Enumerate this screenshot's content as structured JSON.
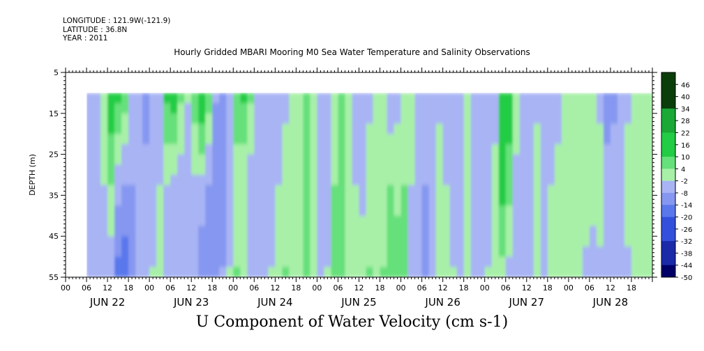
{
  "header": {
    "longitude": "LONGITUDE : 121.9W(-121.9)",
    "latitude": "LATITUDE : 36.8N",
    "year": "YEAR : 2011"
  },
  "chart_data": {
    "type": "heatmap",
    "title": "Hourly Gridded MBARI Mooring M0 Sea Water Temperature and Salinity Observations",
    "variable_title": "U Component of Water Velocity (cm s-1)",
    "ylabel": "DEPTH (m)",
    "ylim": [
      5,
      55
    ],
    "y_inverted": true,
    "y_ticks": [
      5,
      15,
      25,
      35,
      45,
      55
    ],
    "data_depth_range": [
      10,
      55
    ],
    "x_hour_ticks": [
      "00",
      "06",
      "12",
      "18",
      "00",
      "06",
      "12",
      "18",
      "00",
      "06",
      "12",
      "18",
      "00",
      "06",
      "12",
      "18",
      "00",
      "06",
      "12",
      "18",
      "00",
      "06",
      "12",
      "18",
      "00",
      "06",
      "12",
      "18"
    ],
    "x_day_labels": [
      "JUN 22",
      "JUN 23",
      "JUN 24",
      "JUN 25",
      "JUN 26",
      "JUN 27",
      "JUN 28"
    ],
    "time_range_hours": [
      0,
      168
    ],
    "data_time_range_hours": [
      6,
      168
    ],
    "colorbar": {
      "ticks": [
        "46",
        "40",
        "34",
        "28",
        "22",
        "16",
        "10",
        "4",
        "-2",
        "-8",
        "-14",
        "-20",
        "-26",
        "-32",
        "-38",
        "-44",
        "-50"
      ],
      "range": [
        -50,
        52
      ],
      "colors": {
        "high": "#0b3d0b",
        "positive": "#22cc44",
        "weak_positive": "#a8f0a8",
        "weak_negative": "#a8b4f4",
        "negative": "#5a78ec",
        "low": "#000066"
      }
    },
    "columns": [
      {
        "t": 6,
        "sfc": -5,
        "mid": -6,
        "deep": -8
      },
      {
        "t": 8,
        "sfc": -3,
        "mid": -5,
        "deep": -6
      },
      {
        "t": 10,
        "sfc": 2,
        "mid": -2,
        "deep": -4
      },
      {
        "t": 12,
        "sfc": 14,
        "mid": 4,
        "deep": -6
      },
      {
        "t": 14,
        "sfc": 12,
        "mid": -6,
        "deep": -16
      },
      {
        "t": 16,
        "sfc": 6,
        "mid": -8,
        "deep": -18
      },
      {
        "t": 18,
        "sfc": -4,
        "mid": -8,
        "deep": -12
      },
      {
        "t": 20,
        "sfc": -8,
        "mid": -8,
        "deep": -8
      },
      {
        "t": 22,
        "sfc": -10,
        "mid": -6,
        "deep": -4
      },
      {
        "t": 24,
        "sfc": -8,
        "mid": -4,
        "deep": -2
      },
      {
        "t": 26,
        "sfc": -4,
        "mid": -2,
        "deep": 2
      },
      {
        "t": 28,
        "sfc": 10,
        "mid": -2,
        "deep": -4
      },
      {
        "t": 30,
        "sfc": 14,
        "mid": -4,
        "deep": -6
      },
      {
        "t": 32,
        "sfc": 4,
        "mid": -6,
        "deep": -8
      },
      {
        "t": 34,
        "sfc": -2,
        "mid": -6,
        "deep": -6
      },
      {
        "t": 36,
        "sfc": 8,
        "mid": -4,
        "deep": -8
      },
      {
        "t": 38,
        "sfc": 16,
        "mid": -4,
        "deep": -12
      },
      {
        "t": 40,
        "sfc": 6,
        "mid": -8,
        "deep": -14
      },
      {
        "t": 42,
        "sfc": -8,
        "mid": -12,
        "deep": -14
      },
      {
        "t": 44,
        "sfc": -12,
        "mid": -10,
        "deep": -8
      },
      {
        "t": 46,
        "sfc": -6,
        "mid": -4,
        "deep": -2
      },
      {
        "t": 48,
        "sfc": 6,
        "mid": 2,
        "deep": 4
      },
      {
        "t": 50,
        "sfc": 10,
        "mid": -2,
        "deep": -2
      },
      {
        "t": 52,
        "sfc": 4,
        "mid": -6,
        "deep": -6
      },
      {
        "t": 54,
        "sfc": -4,
        "mid": -8,
        "deep": -8
      },
      {
        "t": 56,
        "sfc": -6,
        "mid": -6,
        "deep": -6
      },
      {
        "t": 58,
        "sfc": -8,
        "mid": -4,
        "deep": -2
      },
      {
        "t": 60,
        "sfc": -6,
        "mid": -2,
        "deep": 2
      },
      {
        "t": 62,
        "sfc": -4,
        "mid": 2,
        "deep": 4
      },
      {
        "t": 64,
        "sfc": -2,
        "mid": 2,
        "deep": 2
      },
      {
        "t": 66,
        "sfc": 2,
        "mid": 4,
        "deep": 2
      },
      {
        "t": 68,
        "sfc": 6,
        "mid": 6,
        "deep": 4
      },
      {
        "t": 70,
        "sfc": 2,
        "mid": 2,
        "deep": -2
      },
      {
        "t": 72,
        "sfc": -4,
        "mid": -2,
        "deep": -4
      },
      {
        "t": 74,
        "sfc": -6,
        "mid": -4,
        "deep": -2
      },
      {
        "t": 76,
        "sfc": -2,
        "mid": 4,
        "deep": 6
      },
      {
        "t": 78,
        "sfc": 4,
        "mid": 8,
        "deep": 4
      },
      {
        "t": 80,
        "sfc": 2,
        "mid": 2,
        "deep": 2
      },
      {
        "t": 82,
        "sfc": -4,
        "mid": -2,
        "deep": -2
      },
      {
        "t": 84,
        "sfc": -8,
        "mid": -4,
        "deep": 2
      },
      {
        "t": 86,
        "sfc": -4,
        "mid": 2,
        "deep": 4
      },
      {
        "t": 88,
        "sfc": 2,
        "mid": 2,
        "deep": 2
      },
      {
        "t": 90,
        "sfc": -2,
        "mid": 2,
        "deep": 4
      },
      {
        "t": 92,
        "sfc": -6,
        "mid": 4,
        "deep": 6
      },
      {
        "t": 94,
        "sfc": -4,
        "mid": 2,
        "deep": 8
      },
      {
        "t": 96,
        "sfc": 2,
        "mid": 4,
        "deep": 6
      },
      {
        "t": 98,
        "sfc": -2,
        "mid": -2,
        "deep": -4
      },
      {
        "t": 100,
        "sfc": -6,
        "mid": -6,
        "deep": -8
      },
      {
        "t": 102,
        "sfc": -8,
        "mid": -8,
        "deep": -10
      },
      {
        "t": 104,
        "sfc": -6,
        "mid": -6,
        "deep": -4
      },
      {
        "t": 106,
        "sfc": -4,
        "mid": 2,
        "deep": 2
      },
      {
        "t": 108,
        "sfc": -6,
        "mid": -2,
        "deep": 2
      },
      {
        "t": 110,
        "sfc": -8,
        "mid": -4,
        "deep": -2
      },
      {
        "t": 112,
        "sfc": -4,
        "mid": -2,
        "deep": -4
      },
      {
        "t": 114,
        "sfc": -2,
        "mid": 4,
        "deep": -2
      },
      {
        "t": 116,
        "sfc": -4,
        "mid": -6,
        "deep": -8
      },
      {
        "t": 118,
        "sfc": -6,
        "mid": -8,
        "deep": -6
      },
      {
        "t": 120,
        "sfc": -8,
        "mid": -4,
        "deep": -2
      },
      {
        "t": 122,
        "sfc": -6,
        "mid": 2,
        "deep": 2
      },
      {
        "t": 124,
        "sfc": 10,
        "mid": 12,
        "deep": 2
      },
      {
        "t": 126,
        "sfc": 14,
        "mid": 6,
        "deep": -4
      },
      {
        "t": 128,
        "sfc": 2,
        "mid": -4,
        "deep": -6
      },
      {
        "t": 130,
        "sfc": -8,
        "mid": -8,
        "deep": -8
      },
      {
        "t": 132,
        "sfc": -6,
        "mid": -2,
        "deep": -4
      },
      {
        "t": 134,
        "sfc": -4,
        "mid": 2,
        "deep": -2
      },
      {
        "t": 136,
        "sfc": -6,
        "mid": -4,
        "deep": -6
      },
      {
        "t": 138,
        "sfc": -8,
        "mid": -2,
        "deep": -2
      },
      {
        "t": 140,
        "sfc": -6,
        "mid": 2,
        "deep": 2
      },
      {
        "t": 142,
        "sfc": -2,
        "mid": 2,
        "deep": 2
      },
      {
        "t": 144,
        "sfc": 2,
        "mid": 2,
        "deep": -2
      },
      {
        "t": 146,
        "sfc": 2,
        "mid": 2,
        "deep": -2
      },
      {
        "t": 148,
        "sfc": 2,
        "mid": 2,
        "deep": -4
      },
      {
        "t": 150,
        "sfc": 2,
        "mid": 2,
        "deep": -6
      },
      {
        "t": 152,
        "sfc": -4,
        "mid": 2,
        "deep": -4
      },
      {
        "t": 154,
        "sfc": -12,
        "mid": -4,
        "deep": -4
      },
      {
        "t": 156,
        "sfc": -10,
        "mid": -4,
        "deep": -6
      },
      {
        "t": 158,
        "sfc": -6,
        "mid": -2,
        "deep": -6
      },
      {
        "t": 160,
        "sfc": -4,
        "mid": 2,
        "deep": -4
      },
      {
        "t": 162,
        "sfc": -2,
        "mid": 2,
        "deep": -2
      },
      {
        "t": 164,
        "sfc": -2,
        "mid": 4,
        "deep": -2
      },
      {
        "t": 166,
        "sfc": 2,
        "mid": 4,
        "deep": 2
      },
      {
        "t": 168,
        "sfc": 2,
        "mid": 2,
        "deep": 4
      }
    ]
  }
}
